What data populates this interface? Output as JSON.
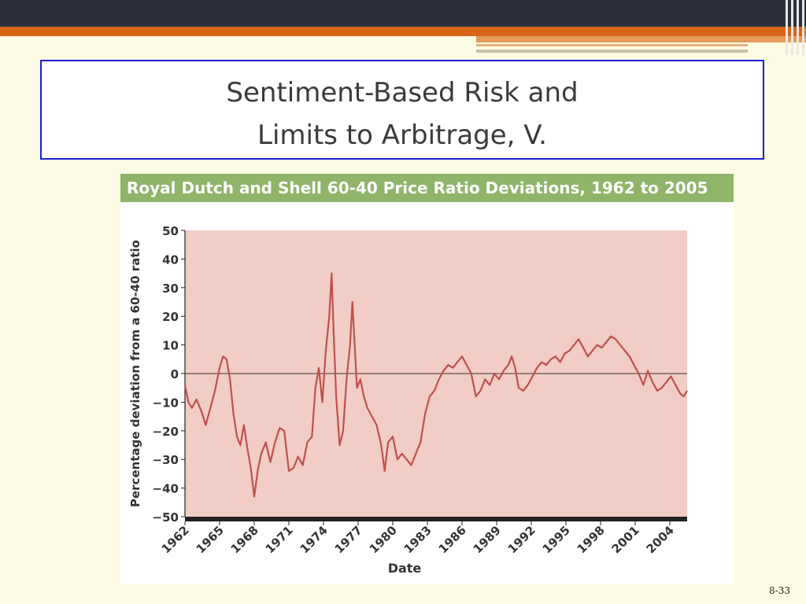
{
  "slide": {
    "title_line1": "Sentiment-Based Risk and",
    "title_line2": "Limits to Arbitrage, V.",
    "page_number": "8-33"
  },
  "colors": {
    "plot_bg": "#f2cdc5",
    "line": "#c0504d",
    "header_bg": "#8fb56a"
  },
  "chart_data": {
    "type": "line",
    "title": "Royal Dutch and Shell 60-40 Price Ratio Deviations, 1962 to 2005",
    "xlabel": "Date",
    "ylabel": "Percentage deviation from a 60-40 ratio",
    "ylim": [
      -50,
      50
    ],
    "xlim": [
      1962,
      2005.5
    ],
    "y_ticks": [
      "50",
      "40",
      "30",
      "20",
      "10",
      "0",
      "−10",
      "−20",
      "−30",
      "−40",
      "−50"
    ],
    "x_ticks": [
      "1962",
      "1965",
      "1968",
      "1971",
      "1974",
      "1977",
      "1980",
      "1983",
      "1986",
      "1989",
      "1992",
      "1995",
      "1998",
      "2001",
      "2004"
    ],
    "grid": false,
    "series": [
      {
        "name": "",
        "points": [
          [
            1962.0,
            -4
          ],
          [
            1962.3,
            -10
          ],
          [
            1962.6,
            -12
          ],
          [
            1963.0,
            -9
          ],
          [
            1963.5,
            -14
          ],
          [
            1963.8,
            -18
          ],
          [
            1964.2,
            -12
          ],
          [
            1964.6,
            -6
          ],
          [
            1965.0,
            2
          ],
          [
            1965.3,
            6
          ],
          [
            1965.6,
            5
          ],
          [
            1965.9,
            -2
          ],
          [
            1966.2,
            -14
          ],
          [
            1966.5,
            -22
          ],
          [
            1966.8,
            -25
          ],
          [
            1967.1,
            -18
          ],
          [
            1967.4,
            -26
          ],
          [
            1967.7,
            -33
          ],
          [
            1968.0,
            -43
          ],
          [
            1968.3,
            -34
          ],
          [
            1968.6,
            -28
          ],
          [
            1969.0,
            -24
          ],
          [
            1969.4,
            -31
          ],
          [
            1969.8,
            -24
          ],
          [
            1970.2,
            -19
          ],
          [
            1970.6,
            -20
          ],
          [
            1971.0,
            -34
          ],
          [
            1971.4,
            -33
          ],
          [
            1971.8,
            -29
          ],
          [
            1972.2,
            -32
          ],
          [
            1972.6,
            -24
          ],
          [
            1973.0,
            -22
          ],
          [
            1973.3,
            -5
          ],
          [
            1973.6,
            2
          ],
          [
            1973.9,
            -10
          ],
          [
            1974.2,
            8
          ],
          [
            1974.5,
            20
          ],
          [
            1974.7,
            35
          ],
          [
            1974.9,
            12
          ],
          [
            1975.1,
            -8
          ],
          [
            1975.4,
            -25
          ],
          [
            1975.7,
            -20
          ],
          [
            1976.0,
            -2
          ],
          [
            1976.3,
            10
          ],
          [
            1976.5,
            25
          ],
          [
            1976.7,
            10
          ],
          [
            1976.9,
            -5
          ],
          [
            1977.2,
            -2
          ],
          [
            1977.5,
            -8
          ],
          [
            1977.8,
            -12
          ],
          [
            1978.2,
            -15
          ],
          [
            1978.6,
            -18
          ],
          [
            1979.0,
            -25
          ],
          [
            1979.3,
            -34
          ],
          [
            1979.6,
            -24
          ],
          [
            1980.0,
            -22
          ],
          [
            1980.4,
            -30
          ],
          [
            1980.8,
            -28
          ],
          [
            1981.2,
            -30
          ],
          [
            1981.6,
            -32
          ],
          [
            1982.0,
            -28
          ],
          [
            1982.4,
            -24
          ],
          [
            1982.8,
            -14
          ],
          [
            1983.2,
            -8
          ],
          [
            1983.6,
            -6
          ],
          [
            1984.0,
            -2
          ],
          [
            1984.4,
            1
          ],
          [
            1984.8,
            3
          ],
          [
            1985.2,
            2
          ],
          [
            1985.6,
            4
          ],
          [
            1986.0,
            6
          ],
          [
            1986.4,
            3
          ],
          [
            1986.8,
            0
          ],
          [
            1987.2,
            -8
          ],
          [
            1987.6,
            -6
          ],
          [
            1988.0,
            -2
          ],
          [
            1988.4,
            -4
          ],
          [
            1988.8,
            0
          ],
          [
            1989.2,
            -2
          ],
          [
            1989.6,
            1
          ],
          [
            1990.0,
            3
          ],
          [
            1990.3,
            6
          ],
          [
            1990.6,
            2
          ],
          [
            1990.9,
            -5
          ],
          [
            1991.3,
            -6
          ],
          [
            1991.7,
            -4
          ],
          [
            1992.1,
            -1
          ],
          [
            1992.5,
            2
          ],
          [
            1992.9,
            4
          ],
          [
            1993.3,
            3
          ],
          [
            1993.7,
            5
          ],
          [
            1994.1,
            6
          ],
          [
            1994.5,
            4
          ],
          [
            1994.9,
            7
          ],
          [
            1995.3,
            8
          ],
          [
            1995.7,
            10
          ],
          [
            1996.1,
            12
          ],
          [
            1996.5,
            9
          ],
          [
            1996.9,
            6
          ],
          [
            1997.3,
            8
          ],
          [
            1997.7,
            10
          ],
          [
            1998.1,
            9
          ],
          [
            1998.5,
            11
          ],
          [
            1998.9,
            13
          ],
          [
            1999.3,
            12
          ],
          [
            1999.7,
            10
          ],
          [
            2000.1,
            8
          ],
          [
            2000.5,
            6
          ],
          [
            2000.9,
            3
          ],
          [
            2001.3,
            0
          ],
          [
            2001.7,
            -4
          ],
          [
            2002.1,
            1
          ],
          [
            2002.5,
            -3
          ],
          [
            2002.9,
            -6
          ],
          [
            2003.3,
            -5
          ],
          [
            2003.7,
            -3
          ],
          [
            2004.1,
            -1
          ],
          [
            2004.5,
            -4
          ],
          [
            2004.9,
            -7
          ],
          [
            2005.2,
            -8
          ],
          [
            2005.5,
            -6
          ]
        ]
      }
    ]
  }
}
